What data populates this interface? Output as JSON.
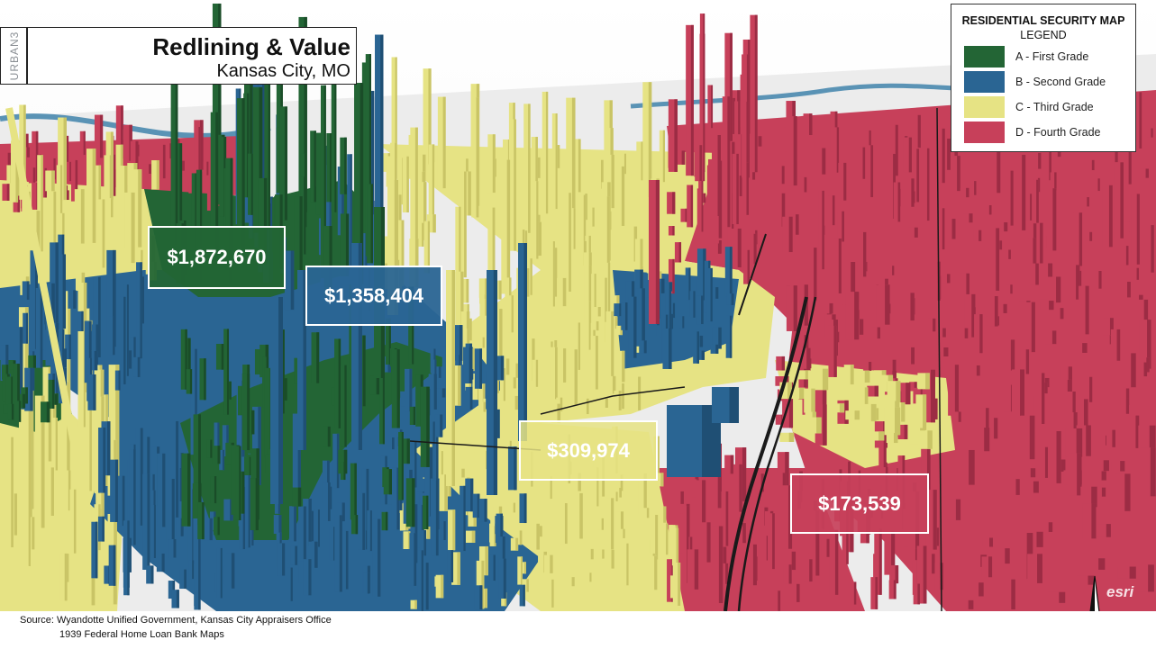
{
  "title": {
    "brand": "URBAN3",
    "main": "Redlining & Value",
    "subtitle": "Kansas City, MO"
  },
  "legend": {
    "title": "RESIDENTIAL SECURITY MAP",
    "subtitle": "LEGEND",
    "items": [
      {
        "label": "A - First Grade",
        "color": "#236535"
      },
      {
        "label": "B - Second Grade",
        "color": "#2a6593"
      },
      {
        "label": "C - Third Grade",
        "color": "#e6e384"
      },
      {
        "label": "D - Fourth Grade",
        "color": "#c7405a"
      }
    ]
  },
  "callouts": [
    {
      "value": "$1,872,670",
      "grade": "A"
    },
    {
      "value": "$1,358,404",
      "grade": "B"
    },
    {
      "value": "$309,974",
      "grade": "C"
    },
    {
      "value": "$173,539",
      "grade": "D"
    }
  ],
  "source": {
    "line1": "Source: Wyandotte Unified Government, Kansas City Appraisers Office",
    "line2": "1939 Federal Home Loan Bank Maps"
  },
  "map": {
    "north_label": "N",
    "attribution": "esri",
    "colors": {
      "green": "#236535",
      "green_dark": "#1a4c28",
      "blue": "#2a6593",
      "blue_dark": "#1f4f74",
      "yellow": "#e6e384",
      "yellow_dark": "#c9c466",
      "red": "#c7405a",
      "red_dark": "#9c2c44",
      "river": "#5a93b5",
      "road": "#1a1a1a",
      "ground": "#f4f4f4"
    }
  }
}
